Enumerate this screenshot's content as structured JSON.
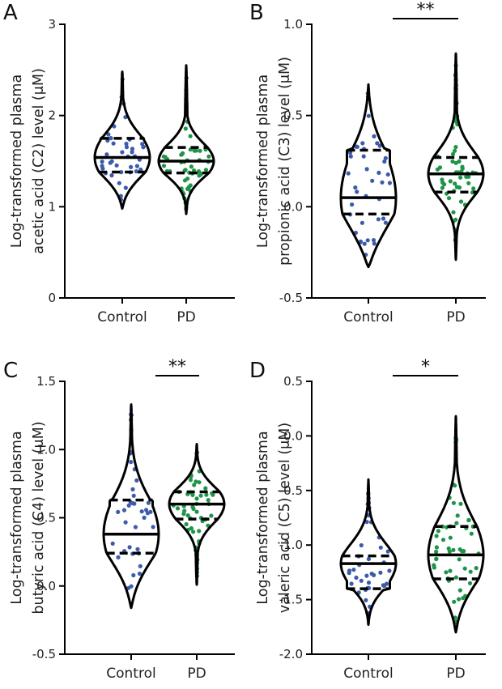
{
  "figure": {
    "categories": [
      "Control",
      "PD"
    ],
    "colors": {
      "control": "#3d5bab",
      "pd": "#1f9448",
      "outline": "#000000",
      "axis": "#000000",
      "text": "#222222"
    }
  },
  "chart_data": [
    {
      "panel": "A",
      "type": "violin",
      "ylabel": [
        "Log-transformed plasma",
        "acetic acid (C2) level (μM)"
      ],
      "categories": [
        "Control",
        "PD"
      ],
      "ylim": [
        0,
        3
      ],
      "yticks": [
        0,
        1,
        2,
        3
      ],
      "yticklabels": [
        "0",
        "1",
        "2",
        "3"
      ],
      "significance": "",
      "series": [
        {
          "name": "Control",
          "min": 0.98,
          "max": 2.48,
          "q1": 1.38,
          "median": 1.54,
          "q3": 1.75,
          "n": 40
        },
        {
          "name": "PD",
          "min": 0.92,
          "max": 2.55,
          "q1": 1.37,
          "median": 1.5,
          "q3": 1.65,
          "n": 55
        }
      ]
    },
    {
      "panel": "B",
      "type": "violin",
      "ylabel": [
        "Log-transformed plasma",
        "propionic  acid (C3) level (μM)"
      ],
      "categories": [
        "Control",
        "PD"
      ],
      "ylim": [
        -0.5,
        1.0
      ],
      "yticks": [
        -0.5,
        0.0,
        0.5,
        1.0
      ],
      "yticklabels": [
        "-0.5",
        "0.0",
        "0.5",
        "1.0"
      ],
      "significance": "**",
      "series": [
        {
          "name": "Control",
          "min": -0.33,
          "max": 0.67,
          "q1": -0.04,
          "median": 0.05,
          "q3": 0.31,
          "n": 40
        },
        {
          "name": "PD",
          "min": -0.29,
          "max": 0.84,
          "q1": 0.08,
          "median": 0.18,
          "q3": 0.27,
          "n": 55
        }
      ]
    },
    {
      "panel": "C",
      "type": "violin",
      "ylabel": [
        "Log-transformed plasma",
        "butyric  acid (C4) level (μM)"
      ],
      "categories": [
        "Control",
        "PD"
      ],
      "ylim": [
        -0.5,
        1.5
      ],
      "yticks": [
        -0.5,
        0.0,
        0.5,
        1.0,
        1.5
      ],
      "yticklabels": [
        "-0.5",
        "0.0",
        "0.5",
        "1.0",
        "1.5"
      ],
      "significance": "**",
      "series": [
        {
          "name": "Control",
          "min": -0.16,
          "max": 1.33,
          "q1": 0.24,
          "median": 0.38,
          "q3": 0.63,
          "n": 40
        },
        {
          "name": "PD",
          "min": 0.01,
          "max": 1.04,
          "q1": 0.49,
          "median": 0.6,
          "q3": 0.69,
          "n": 55
        }
      ]
    },
    {
      "panel": "D",
      "type": "violin",
      "ylabel": [
        "Log-transformed plasma",
        "valeric acid (C5) level (μM)"
      ],
      "categories": [
        "Control",
        "PD"
      ],
      "ylim": [
        -2.0,
        0.5
      ],
      "yticks": [
        -2.0,
        -1.5,
        -1.0,
        -0.5,
        0.0,
        0.5
      ],
      "yticklabels": [
        "-2.0",
        "-1.5",
        "-1.0",
        "-0.5",
        "0.0",
        "0.5"
      ],
      "significance": "*",
      "series": [
        {
          "name": "Control",
          "min": -1.73,
          "max": -0.4,
          "q1": -1.4,
          "median": -1.17,
          "q3": -1.1,
          "n": 40
        },
        {
          "name": "PD",
          "min": -1.8,
          "max": 0.18,
          "q1": -1.31,
          "median": -1.09,
          "q3": -0.83,
          "n": 55
        }
      ]
    }
  ]
}
